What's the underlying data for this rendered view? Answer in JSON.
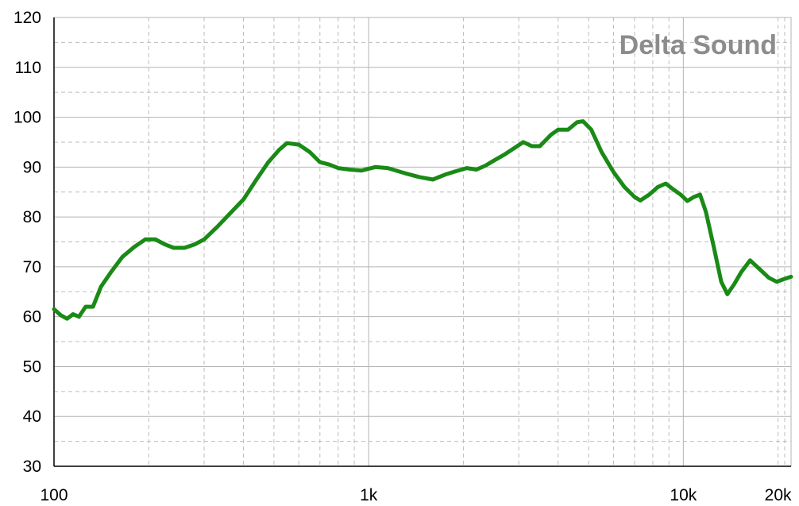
{
  "chart_data": {
    "type": "line",
    "title": "",
    "xlabel": "",
    "ylabel": "",
    "watermark": "Delta Sound",
    "x_scale": "log",
    "xlim": [
      100,
      22000
    ],
    "ylim": [
      30,
      120
    ],
    "grid": true,
    "colors": {
      "line": "#1a8a16",
      "grid_major": "#b4b4b4",
      "grid_minor": "#bdbdbd",
      "axis": "#000000",
      "watermark": "#8c8c8c"
    },
    "x_ticks": [
      {
        "value": 100,
        "label": "100"
      },
      {
        "value": 1000,
        "label": "1k"
      },
      {
        "value": 10000,
        "label": "10k"
      },
      {
        "value": 20000,
        "label": "20k"
      }
    ],
    "y_ticks": [
      {
        "value": 30,
        "label": "30"
      },
      {
        "value": 40,
        "label": "40"
      },
      {
        "value": 50,
        "label": "50"
      },
      {
        "value": 60,
        "label": "60"
      },
      {
        "value": 70,
        "label": "70"
      },
      {
        "value": 80,
        "label": "80"
      },
      {
        "value": 90,
        "label": "90"
      },
      {
        "value": 100,
        "label": "100"
      },
      {
        "value": 110,
        "label": "110"
      },
      {
        "value": 120,
        "label": "120"
      }
    ],
    "series": [
      {
        "points": [
          [
            100,
            61.5
          ],
          [
            105,
            60.3
          ],
          [
            110,
            59.6
          ],
          [
            115,
            60.5
          ],
          [
            120,
            60.0
          ],
          [
            126,
            62.0
          ],
          [
            133,
            62.0
          ],
          [
            141,
            66.0
          ],
          [
            152,
            69.0
          ],
          [
            165,
            72.0
          ],
          [
            180,
            74.0
          ],
          [
            195,
            75.5
          ],
          [
            210,
            75.5
          ],
          [
            225,
            74.5
          ],
          [
            240,
            73.8
          ],
          [
            260,
            73.8
          ],
          [
            280,
            74.5
          ],
          [
            300,
            75.5
          ],
          [
            330,
            78.0
          ],
          [
            360,
            80.5
          ],
          [
            400,
            83.5
          ],
          [
            440,
            87.5
          ],
          [
            480,
            91.0
          ],
          [
            520,
            93.5
          ],
          [
            550,
            94.8
          ],
          [
            600,
            94.5
          ],
          [
            650,
            93.0
          ],
          [
            700,
            91.0
          ],
          [
            750,
            90.5
          ],
          [
            800,
            89.8
          ],
          [
            870,
            89.5
          ],
          [
            950,
            89.3
          ],
          [
            1050,
            90.0
          ],
          [
            1150,
            89.8
          ],
          [
            1300,
            88.8
          ],
          [
            1450,
            88.0
          ],
          [
            1600,
            87.5
          ],
          [
            1750,
            88.5
          ],
          [
            1900,
            89.2
          ],
          [
            2050,
            89.8
          ],
          [
            2200,
            89.5
          ],
          [
            2350,
            90.3
          ],
          [
            2500,
            91.3
          ],
          [
            2700,
            92.5
          ],
          [
            2900,
            93.8
          ],
          [
            3100,
            95.0
          ],
          [
            3300,
            94.2
          ],
          [
            3500,
            94.2
          ],
          [
            3800,
            96.5
          ],
          [
            4000,
            97.5
          ],
          [
            4300,
            97.5
          ],
          [
            4600,
            99.0
          ],
          [
            4800,
            99.2
          ],
          [
            5100,
            97.5
          ],
          [
            5500,
            93.0
          ],
          [
            6000,
            89.0
          ],
          [
            6500,
            86.0
          ],
          [
            7000,
            84.0
          ],
          [
            7300,
            83.3
          ],
          [
            7800,
            84.5
          ],
          [
            8300,
            86.0
          ],
          [
            8800,
            86.7
          ],
          [
            9300,
            85.5
          ],
          [
            9800,
            84.5
          ],
          [
            10300,
            83.2
          ],
          [
            10800,
            84.0
          ],
          [
            11300,
            84.5
          ],
          [
            11800,
            81.0
          ],
          [
            12500,
            74.0
          ],
          [
            13200,
            67.0
          ],
          [
            13800,
            64.5
          ],
          [
            14500,
            66.5
          ],
          [
            15300,
            69.0
          ],
          [
            16300,
            71.3
          ],
          [
            17500,
            69.5
          ],
          [
            18700,
            67.8
          ],
          [
            19800,
            67.0
          ],
          [
            20800,
            67.5
          ],
          [
            22000,
            68.0
          ]
        ]
      }
    ]
  }
}
